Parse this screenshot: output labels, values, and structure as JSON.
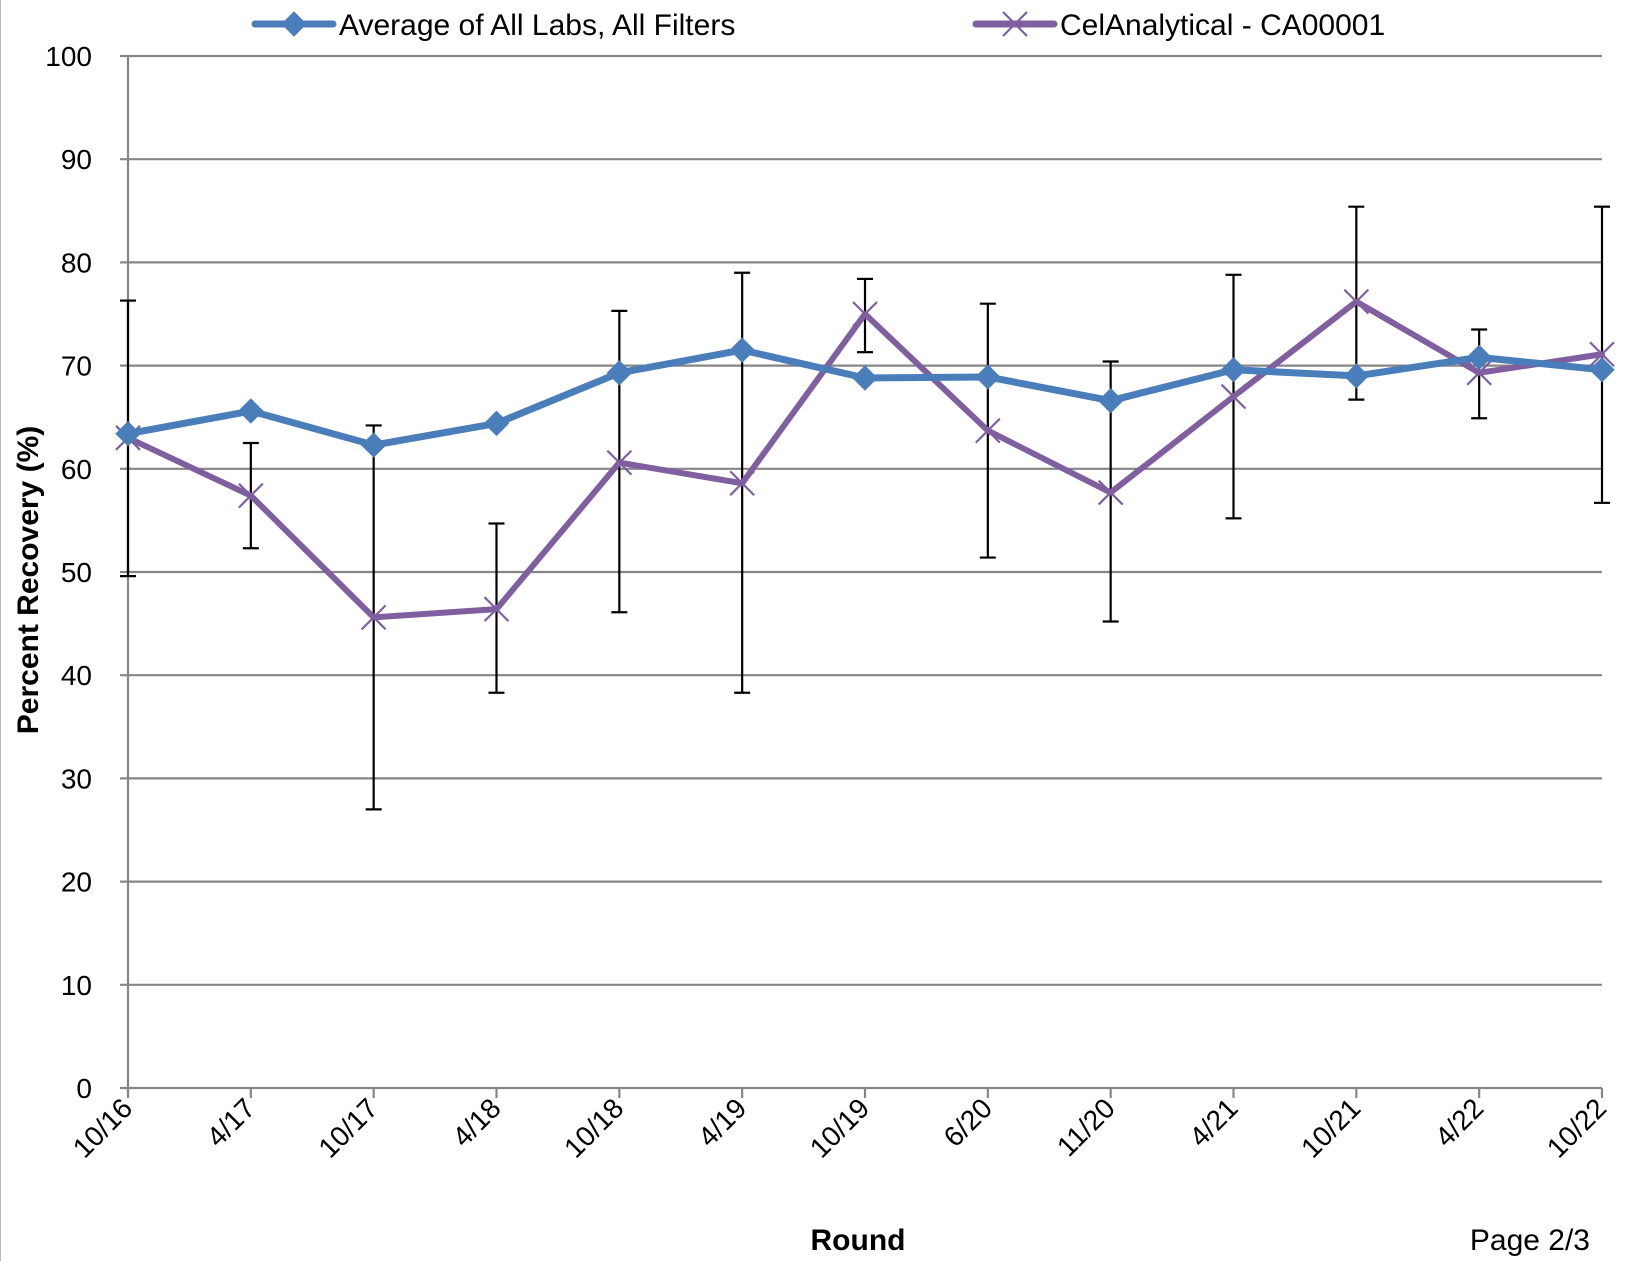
{
  "chart_data": {
    "type": "line",
    "title": "",
    "xlabel": "Round",
    "ylabel": "Percent Recovery (%)",
    "ylim": [
      0,
      100
    ],
    "yticks": [
      0,
      10,
      20,
      30,
      40,
      50,
      60,
      70,
      80,
      90,
      100
    ],
    "grid": true,
    "legend_position": "top",
    "categories": [
      "10/16",
      "4/17",
      "10/17",
      "4/18",
      "10/18",
      "4/19",
      "10/19",
      "6/20",
      "11/20",
      "4/21",
      "10/21",
      "4/22",
      "10/22"
    ],
    "series": [
      {
        "name": "Average of All Labs, All Filters",
        "color": "#4a7ebb",
        "marker": "diamond",
        "values": [
          63.4,
          65.6,
          62.3,
          64.4,
          69.3,
          71.5,
          68.8,
          68.9,
          66.6,
          69.6,
          69.0,
          70.8,
          69.6
        ],
        "error_low": [
          49.6,
          52.3,
          27.0,
          38.3,
          46.1,
          38.3,
          71.3,
          51.4,
          45.2,
          55.2,
          66.7,
          64.9,
          56.7
        ],
        "error_high": [
          76.3,
          62.5,
          64.2,
          54.7,
          75.3,
          79.0,
          78.4,
          76.0,
          70.4,
          78.8,
          85.4,
          73.5,
          85.4
        ]
      },
      {
        "name": "CelAnalytical - CA00001",
        "color": "#7f5fa0",
        "marker": "x",
        "values": [
          63.0,
          57.4,
          45.6,
          46.4,
          60.6,
          58.6,
          75.0,
          63.7,
          57.7,
          67.0,
          76.2,
          69.3,
          71.1
        ]
      }
    ]
  },
  "footer": {
    "page_label": "Page 2/3"
  },
  "colors": {
    "grid": "#868686",
    "axis": "#868686",
    "errorbar": "#000000"
  }
}
